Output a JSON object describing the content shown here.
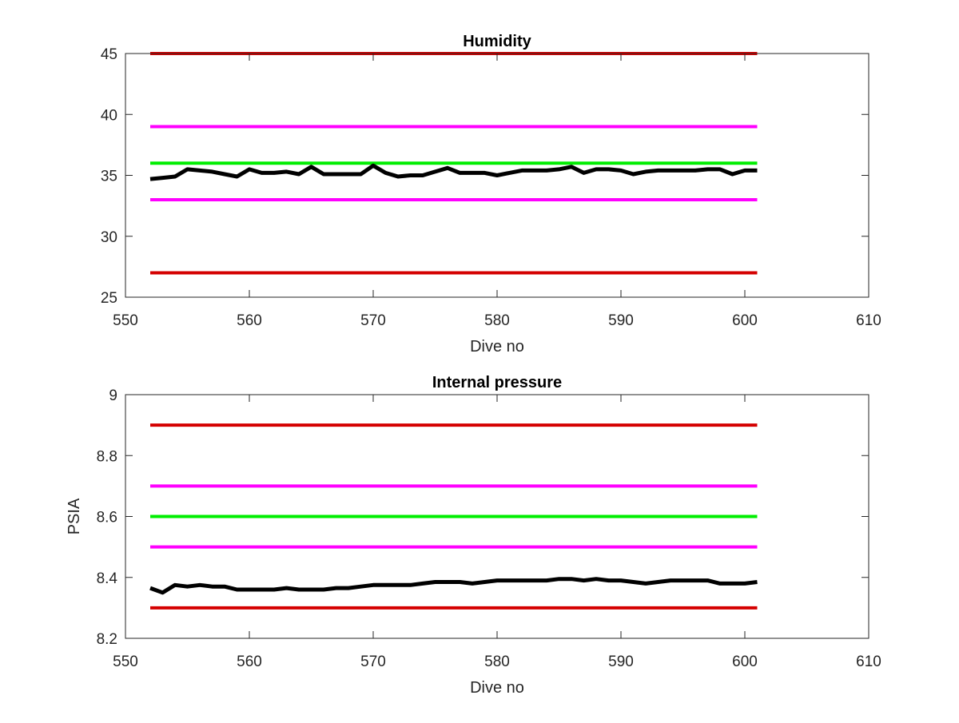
{
  "chart_data": [
    {
      "type": "line",
      "title": "Humidity",
      "xlabel": "Dive no",
      "ylabel": "",
      "xlim": [
        550,
        610
      ],
      "ylim": [
        25,
        45
      ],
      "xticks": [
        550,
        560,
        570,
        580,
        590,
        600,
        610
      ],
      "yticks": [
        25,
        30,
        35,
        40,
        45
      ],
      "grid": false,
      "series": [
        {
          "color": "#d40000",
          "style": "limit",
          "x": [
            552,
            601
          ],
          "y": [
            45,
            45
          ]
        },
        {
          "color": "#ff00ff",
          "style": "limit",
          "x": [
            552,
            601
          ],
          "y": [
            39,
            39
          ]
        },
        {
          "color": "#00ee00",
          "style": "limit",
          "x": [
            552,
            601
          ],
          "y": [
            36,
            36
          ]
        },
        {
          "color": "#ff00ff",
          "style": "limit",
          "x": [
            552,
            601
          ],
          "y": [
            33,
            33
          ]
        },
        {
          "color": "#d40000",
          "style": "limit",
          "x": [
            552,
            601
          ],
          "y": [
            27,
            27
          ]
        },
        {
          "color": "#000000",
          "style": "data",
          "x": [
            552,
            553,
            554,
            555,
            556,
            557,
            558,
            559,
            560,
            561,
            562,
            563,
            564,
            565,
            566,
            567,
            568,
            569,
            570,
            571,
            572,
            573,
            574,
            575,
            576,
            577,
            578,
            579,
            580,
            581,
            582,
            583,
            584,
            585,
            586,
            587,
            588,
            589,
            590,
            591,
            592,
            593,
            594,
            595,
            596,
            597,
            598,
            599,
            600,
            601
          ],
          "y": [
            34.7,
            34.8,
            34.9,
            35.5,
            35.4,
            35.3,
            35.1,
            34.9,
            35.5,
            35.2,
            35.2,
            35.3,
            35.1,
            35.7,
            35.1,
            35.1,
            35.1,
            35.1,
            35.8,
            35.2,
            34.9,
            35.0,
            35.0,
            35.3,
            35.6,
            35.2,
            35.2,
            35.2,
            35.0,
            35.2,
            35.4,
            35.4,
            35.4,
            35.5,
            35.7,
            35.2,
            35.5,
            35.5,
            35.4,
            35.1,
            35.3,
            35.4,
            35.4,
            35.4,
            35.4,
            35.5,
            35.5,
            35.1,
            35.4,
            35.4
          ]
        }
      ]
    },
    {
      "type": "line",
      "title": "Internal pressure",
      "xlabel": "Dive no",
      "ylabel": "PSIA",
      "xlim": [
        550,
        610
      ],
      "ylim": [
        8.2,
        9
      ],
      "xticks": [
        550,
        560,
        570,
        580,
        590,
        600,
        610
      ],
      "yticks": [
        8.2,
        8.4,
        8.6,
        8.8,
        9
      ],
      "grid": false,
      "series": [
        {
          "color": "#d40000",
          "style": "limit",
          "x": [
            552,
            601
          ],
          "y": [
            8.9,
            8.9
          ]
        },
        {
          "color": "#ff00ff",
          "style": "limit",
          "x": [
            552,
            601
          ],
          "y": [
            8.7,
            8.7
          ]
        },
        {
          "color": "#00ee00",
          "style": "limit",
          "x": [
            552,
            601
          ],
          "y": [
            8.6,
            8.6
          ]
        },
        {
          "color": "#ff00ff",
          "style": "limit",
          "x": [
            552,
            601
          ],
          "y": [
            8.5,
            8.5
          ]
        },
        {
          "color": "#d40000",
          "style": "limit",
          "x": [
            552,
            601
          ],
          "y": [
            8.3,
            8.3
          ]
        },
        {
          "color": "#000000",
          "style": "data",
          "x": [
            552,
            553,
            554,
            555,
            556,
            557,
            558,
            559,
            560,
            561,
            562,
            563,
            564,
            565,
            566,
            567,
            568,
            569,
            570,
            571,
            572,
            573,
            574,
            575,
            576,
            577,
            578,
            579,
            580,
            581,
            582,
            583,
            584,
            585,
            586,
            587,
            588,
            589,
            590,
            591,
            592,
            593,
            594,
            595,
            596,
            597,
            598,
            599,
            600,
            601
          ],
          "y": [
            8.365,
            8.35,
            8.375,
            8.37,
            8.375,
            8.37,
            8.37,
            8.36,
            8.36,
            8.36,
            8.36,
            8.365,
            8.36,
            8.36,
            8.36,
            8.365,
            8.365,
            8.37,
            8.375,
            8.375,
            8.375,
            8.375,
            8.38,
            8.385,
            8.385,
            8.385,
            8.38,
            8.385,
            8.39,
            8.39,
            8.39,
            8.39,
            8.39,
            8.395,
            8.395,
            8.39,
            8.395,
            8.39,
            8.39,
            8.385,
            8.38,
            8.385,
            8.39,
            8.39,
            8.39,
            8.39,
            8.38,
            8.38,
            8.38,
            8.385
          ]
        }
      ]
    }
  ]
}
